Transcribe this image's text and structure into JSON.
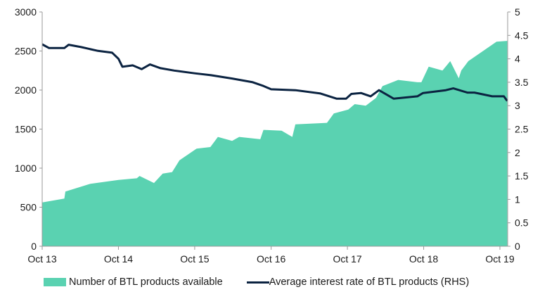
{
  "chart_data": {
    "type": "area+line",
    "title": "",
    "xlabel": "",
    "ylabel": "",
    "y2label": "",
    "x_ticks": [
      {
        "date": "2013-10-01",
        "label": "Oct 13"
      },
      {
        "date": "2014-10-01",
        "label": "Oct 14"
      },
      {
        "date": "2015-10-01",
        "label": "Oct 15"
      },
      {
        "date": "2016-10-01",
        "label": "Oct 16"
      },
      {
        "date": "2017-10-01",
        "label": "Oct 17"
      },
      {
        "date": "2018-10-01",
        "label": "Oct 18"
      },
      {
        "date": "2019-10-01",
        "label": "Oct 19"
      }
    ],
    "ylim": [
      0,
      3000
    ],
    "y_ticks": [
      "0",
      "500",
      "1000",
      "1500",
      "2000",
      "2500",
      "3000"
    ],
    "y2lim": [
      0,
      5
    ],
    "y2_ticks": [
      "0",
      "0.5",
      "1",
      "1.5",
      "2",
      "2.5",
      "3",
      "3.5",
      "4",
      "4.5",
      "5"
    ],
    "grid": false,
    "legend_position": "bottom",
    "series": [
      {
        "name": "Number of BTL products available",
        "type": "area",
        "axis": "left",
        "color": "#5ad2b1",
        "points": [
          [
            "2013-10-01",
            560
          ],
          [
            "2014-01-15",
            610
          ],
          [
            "2014-01-20",
            700
          ],
          [
            "2014-05-20",
            800
          ],
          [
            "2014-10-01",
            850
          ],
          [
            "2014-12-28",
            870
          ],
          [
            "2015-01-10",
            900
          ],
          [
            "2015-03-20",
            810
          ],
          [
            "2015-05-01",
            930
          ],
          [
            "2015-06-15",
            950
          ],
          [
            "2015-07-20",
            1100
          ],
          [
            "2015-10-10",
            1250
          ],
          [
            "2015-12-15",
            1270
          ],
          [
            "2016-01-20",
            1400
          ],
          [
            "2016-03-28",
            1350
          ],
          [
            "2016-05-01",
            1400
          ],
          [
            "2016-08-10",
            1370
          ],
          [
            "2016-08-25",
            1490
          ],
          [
            "2016-11-20",
            1480
          ],
          [
            "2017-01-10",
            1400
          ],
          [
            "2017-01-25",
            1560
          ],
          [
            "2017-06-25",
            1580
          ],
          [
            "2017-07-28",
            1700
          ],
          [
            "2017-10-05",
            1750
          ],
          [
            "2017-11-05",
            1820
          ],
          [
            "2017-12-28",
            1800
          ],
          [
            "2018-02-15",
            1900
          ],
          [
            "2018-03-18",
            2050
          ],
          [
            "2018-06-01",
            2130
          ],
          [
            "2018-09-01",
            2100
          ],
          [
            "2018-09-20",
            2100
          ],
          [
            "2018-10-25",
            2300
          ],
          [
            "2018-12-30",
            2250
          ],
          [
            "2019-02-05",
            2370
          ],
          [
            "2019-03-18",
            2150
          ],
          [
            "2019-03-30",
            2250
          ],
          [
            "2019-05-03",
            2370
          ],
          [
            "2019-09-15",
            2620
          ],
          [
            "2019-11-05",
            2630
          ]
        ]
      },
      {
        "name": "Average interest rate of BTL products (RHS)",
        "type": "line",
        "axis": "right",
        "color": "#0b2341",
        "points": [
          [
            "2013-10-01",
            4.31
          ],
          [
            "2013-11-03",
            4.23
          ],
          [
            "2014-01-15",
            4.23
          ],
          [
            "2014-02-05",
            4.3
          ],
          [
            "2014-04-05",
            4.25
          ],
          [
            "2014-06-25",
            4.17
          ],
          [
            "2014-09-01",
            4.13
          ],
          [
            "2014-10-01",
            4.0
          ],
          [
            "2014-10-20",
            3.83
          ],
          [
            "2014-12-08",
            3.86
          ],
          [
            "2015-01-20",
            3.78
          ],
          [
            "2015-03-01",
            3.88
          ],
          [
            "2015-04-20",
            3.8
          ],
          [
            "2015-06-25",
            3.75
          ],
          [
            "2015-10-01",
            3.69
          ],
          [
            "2015-12-18",
            3.65
          ],
          [
            "2016-03-28",
            3.58
          ],
          [
            "2016-07-05",
            3.5
          ],
          [
            "2016-08-25",
            3.42
          ],
          [
            "2016-10-01",
            3.35
          ],
          [
            "2017-01-25",
            3.33
          ],
          [
            "2017-05-25",
            3.26
          ],
          [
            "2017-08-10",
            3.15
          ],
          [
            "2017-09-25",
            3.15
          ],
          [
            "2017-10-20",
            3.25
          ],
          [
            "2017-12-05",
            3.27
          ],
          [
            "2018-01-20",
            3.2
          ],
          [
            "2018-03-01",
            3.33
          ],
          [
            "2018-05-10",
            3.15
          ],
          [
            "2018-09-01",
            3.2
          ],
          [
            "2018-09-28",
            3.27
          ],
          [
            "2019-01-15",
            3.33
          ],
          [
            "2019-02-20",
            3.37
          ],
          [
            "2019-04-28",
            3.28
          ],
          [
            "2019-06-01",
            3.28
          ],
          [
            "2019-08-25",
            3.2
          ],
          [
            "2019-10-20",
            3.2
          ],
          [
            "2019-11-05",
            3.1
          ]
        ]
      }
    ]
  }
}
